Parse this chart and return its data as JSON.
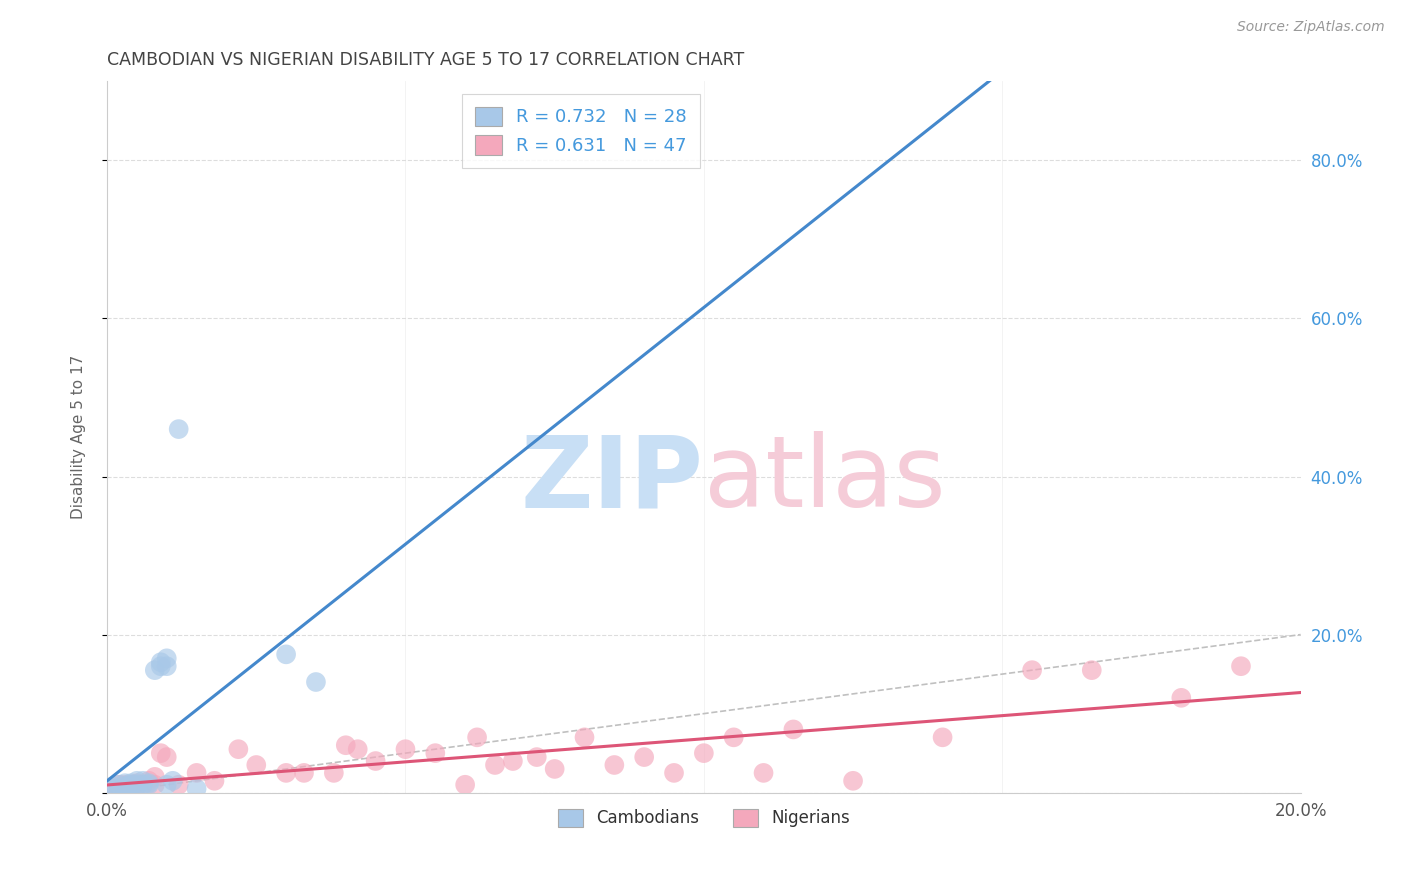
{
  "title": "CAMBODIAN VS NIGERIAN DISABILITY AGE 5 TO 17 CORRELATION CHART",
  "source": "Source: ZipAtlas.com",
  "ylabel": "Disability Age 5 to 17",
  "xlim": [
    0.0,
    0.2
  ],
  "ylim": [
    0.0,
    0.9
  ],
  "xticks": [
    0.0,
    0.05,
    0.1,
    0.15,
    0.2
  ],
  "yticks": [
    0.0,
    0.2,
    0.4,
    0.6,
    0.8
  ],
  "ytick_labels_right": [
    "",
    "20.0%",
    "40.0%",
    "60.0%",
    "80.0%"
  ],
  "xtick_labels": [
    "0.0%",
    "",
    "",
    "",
    "20.0%"
  ],
  "cambodian_color": "#a8c8e8",
  "nigerian_color": "#f4a8bc",
  "trendline_cambodian_color": "#4488cc",
  "trendline_nigerian_color": "#dd5577",
  "diagonal_color": "#c0c0c0",
  "background_color": "#ffffff",
  "grid_color": "#dddddd",
  "title_color": "#444444",
  "source_color": "#999999",
  "legend_text_color": "#4499dd",
  "legend_label_color": "#333333",
  "watermark_zip_color": "#c8dff5",
  "watermark_atlas_color": "#f5ccd8",
  "cambodian_points_x": [
    0.001,
    0.001,
    0.002,
    0.002,
    0.003,
    0.003,
    0.003,
    0.004,
    0.004,
    0.004,
    0.005,
    0.005,
    0.005,
    0.006,
    0.006,
    0.007,
    0.007,
    0.008,
    0.009,
    0.009,
    0.01,
    0.01,
    0.01,
    0.011,
    0.012,
    0.015,
    0.03,
    0.035
  ],
  "cambodian_points_y": [
    0.005,
    0.008,
    0.005,
    0.01,
    0.008,
    0.005,
    0.012,
    0.008,
    0.012,
    0.01,
    0.01,
    0.015,
    0.008,
    0.01,
    0.015,
    0.012,
    0.01,
    0.155,
    0.165,
    0.16,
    0.16,
    0.17,
    0.01,
    0.015,
    0.46,
    0.005,
    0.175,
    0.14
  ],
  "nigerian_points_x": [
    0.001,
    0.002,
    0.002,
    0.003,
    0.003,
    0.004,
    0.005,
    0.005,
    0.006,
    0.007,
    0.008,
    0.008,
    0.009,
    0.01,
    0.012,
    0.015,
    0.018,
    0.022,
    0.025,
    0.03,
    0.033,
    0.038,
    0.04,
    0.042,
    0.045,
    0.05,
    0.055,
    0.06,
    0.062,
    0.065,
    0.068,
    0.072,
    0.075,
    0.08,
    0.085,
    0.09,
    0.095,
    0.1,
    0.105,
    0.11,
    0.115,
    0.125,
    0.14,
    0.155,
    0.165,
    0.18,
    0.19
  ],
  "nigerian_points_y": [
    0.005,
    0.01,
    0.005,
    0.01,
    0.008,
    0.01,
    0.008,
    0.012,
    0.01,
    0.015,
    0.01,
    0.02,
    0.05,
    0.045,
    0.01,
    0.025,
    0.015,
    0.055,
    0.035,
    0.025,
    0.025,
    0.025,
    0.06,
    0.055,
    0.04,
    0.055,
    0.05,
    0.01,
    0.07,
    0.035,
    0.04,
    0.045,
    0.03,
    0.07,
    0.035,
    0.045,
    0.025,
    0.05,
    0.07,
    0.025,
    0.08,
    0.015,
    0.07,
    0.155,
    0.155,
    0.12,
    0.16
  ]
}
